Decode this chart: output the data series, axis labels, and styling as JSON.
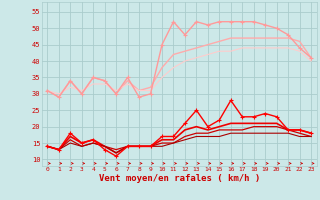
{
  "x": [
    0,
    1,
    2,
    3,
    4,
    5,
    6,
    7,
    8,
    9,
    10,
    11,
    12,
    13,
    14,
    15,
    16,
    17,
    18,
    19,
    20,
    21,
    22,
    23
  ],
  "background_color": "#cce8e8",
  "grid_color": "#aacccc",
  "xlabel": "Vent moyen/en rafales ( km/h )",
  "xlabel_color": "#cc0000",
  "xlabel_fontsize": 6.5,
  "tick_color": "#cc0000",
  "yticks": [
    10,
    15,
    20,
    25,
    30,
    35,
    40,
    45,
    50,
    55
  ],
  "ylim": [
    8,
    58
  ],
  "xlim": [
    -0.5,
    23.5
  ],
  "line1_y": [
    31,
    29,
    34,
    30,
    35,
    34,
    30,
    35,
    29,
    30,
    45,
    52,
    48,
    52,
    51,
    52,
    52,
    52,
    52,
    51,
    50,
    48,
    44,
    41
  ],
  "line1_color": "#ff9999",
  "line1_lw": 1.0,
  "line1_marker": "+",
  "line1_ms": 3.5,
  "line2_y": [
    31,
    29,
    34,
    30,
    35,
    34,
    30,
    34,
    31,
    32,
    38,
    42,
    43,
    44,
    45,
    46,
    47,
    47,
    47,
    47,
    47,
    47,
    46,
    41
  ],
  "line2_color": "#ffaaaa",
  "line2_lw": 1.0,
  "line3_y": [
    31,
    30,
    32,
    31,
    33,
    33,
    31,
    33,
    31,
    31,
    35,
    38,
    40,
    41,
    42,
    43,
    43,
    44,
    44,
    44,
    44,
    44,
    43,
    40
  ],
  "line3_color": "#ffcccc",
  "line3_lw": 0.8,
  "line4_y": [
    14,
    13,
    18,
    15,
    16,
    13,
    11,
    14,
    14,
    14,
    17,
    17,
    21,
    25,
    20,
    22,
    28,
    23,
    23,
    24,
    23,
    19,
    19,
    18
  ],
  "line4_color": "#ff0000",
  "line4_lw": 1.0,
  "line4_marker": "+",
  "line4_ms": 3.5,
  "line5_y": [
    14,
    13,
    17,
    15,
    16,
    14,
    12,
    14,
    14,
    14,
    16,
    16,
    19,
    20,
    19,
    20,
    21,
    21,
    21,
    21,
    21,
    19,
    19,
    18
  ],
  "line5_color": "#ee0000",
  "line5_lw": 1.2,
  "line6_y": [
    14,
    13,
    16,
    14,
    15,
    14,
    13,
    14,
    14,
    14,
    15,
    15,
    17,
    18,
    18,
    19,
    19,
    19,
    20,
    20,
    20,
    19,
    18,
    17
  ],
  "line6_color": "#cc0000",
  "line6_lw": 0.9,
  "line7_y": [
    14,
    13,
    15,
    14,
    15,
    14,
    12,
    14,
    14,
    14,
    14,
    15,
    16,
    17,
    17,
    17,
    18,
    18,
    18,
    18,
    18,
    18,
    17,
    17
  ],
  "line7_color": "#aa0000",
  "line7_lw": 0.8,
  "arrow_color": "#cc0000"
}
